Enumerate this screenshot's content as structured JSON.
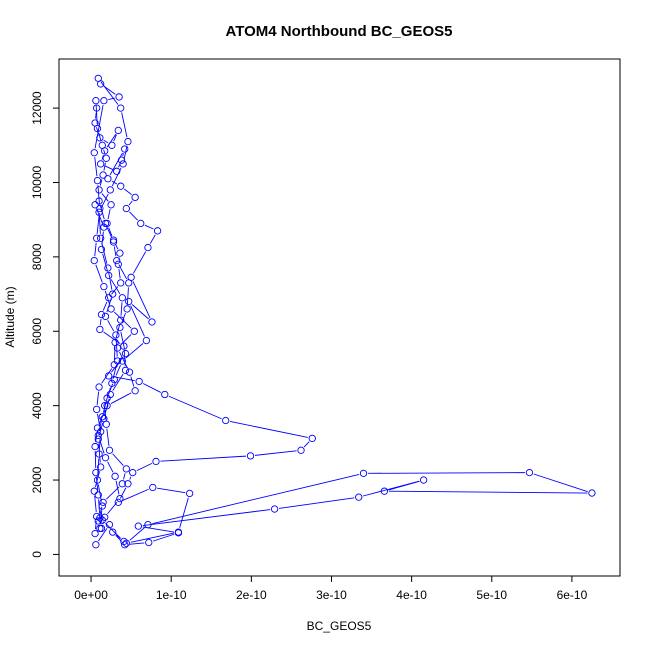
{
  "chart_data": {
    "type": "line",
    "title": "ATOM4 Northbound BC_GEOS5",
    "xlabel": "BC_GEOS5",
    "ylabel": "Altitude (m)",
    "xlim": [
      -4e-11,
      6.6e-10
    ],
    "ylim": [
      -580,
      13320
    ],
    "x_ticks": [
      0,
      1e-10,
      2e-10,
      3e-10,
      4e-10,
      5e-10,
      6e-10
    ],
    "x_tick_labels": [
      "0e+00",
      "1e-10",
      "2e-10",
      "3e-10",
      "4e-10",
      "5e-10",
      "6e-10"
    ],
    "y_ticks": [
      0,
      2000,
      4000,
      6000,
      8000,
      10000,
      12000
    ],
    "y_tick_labels": [
      "0",
      "2000",
      "4000",
      "6000",
      "8000",
      "10000",
      "12000"
    ],
    "grid": false,
    "legend": "none",
    "colors": {
      "series": "#0000ff",
      "axis": "#000000",
      "background": "#ffffff"
    },
    "series": [
      {
        "marker": "open-circle",
        "x": [
          5e-12,
          7e-12,
          4e-12,
          1.2e-11,
          9e-12,
          1.6e-11,
          2.4e-11,
          4.3e-11,
          4.1e-11,
          1.1e-11,
          1.3e-11,
          2.2e-11,
          3.7e-11,
          3.4e-11,
          3.6e-11,
          2.8e-11,
          2e-11,
          2.5e-11,
          1e-11,
          1.5e-11,
          1.9e-11,
          1.4e-11,
          8e-12,
          6e-12,
          7e-12,
          5e-12,
          1.1e-11,
          2.6e-11,
          3.4e-11,
          1.7e-11,
          1.2e-11,
          3.2e-11,
          3.8e-11,
          4.2e-11,
          2.1e-11,
          3.7e-11,
          5.5e-11,
          4.4e-11,
          6.2e-11,
          8.3e-11,
          7.1e-11,
          5e-11,
          7.6e-11,
          4.7e-11,
          6.9e-11,
          3.9e-11,
          2.9e-11,
          2e-11,
          1.4e-11,
          9e-12,
          1.8e-11,
          3e-11,
          3.6e-11,
          1.7e-11,
          1.3e-11,
          1.1e-11,
          9e-12,
          6e-12,
          5e-12,
          8e-12,
          2e-11,
          5.5e-11,
          4.8e-11,
          3.3e-11,
          5.4e-11,
          2.5e-11,
          1.6e-11,
          4e-12,
          7e-12,
          1.1e-11,
          8e-12,
          4e-12,
          1.6e-11,
          3.5e-11,
          1.2e-11,
          9e-12,
          3.7e-11,
          4.6e-11,
          4e-11,
          2.4e-11,
          1e-11,
          1.2e-11,
          2.1e-11,
          2.7e-11,
          1.8e-11,
          3.1e-11,
          3.3e-11,
          2.6e-11,
          1.7e-11,
          1.9e-11,
          2.3e-11,
          4.4e-11,
          3.9e-11,
          1.5e-11,
          9e-12,
          1.1e-11,
          1.4e-11,
          8e-12,
          1e-11,
          1.2e-11,
          7e-12,
          1e-11,
          2.9e-11,
          3e-11,
          3.7e-11,
          3.9e-11,
          2.2e-11,
          1.3e-11,
          1.6e-11,
          5e-12,
          1e-11,
          1.8e-11,
          2.8e-11,
          3.2e-11,
          4.7e-11,
          4.5e-11,
          3.6e-11,
          4.3e-11,
          2.2e-11,
          6e-11,
          9.2e-11,
          1.68e-10,
          2.76e-10,
          2.62e-10,
          1.99e-10,
          8.1e-11,
          5.2e-11,
          4.6e-11,
          3.4e-11,
          7.7e-11,
          1.23e-10,
          1.09e-10,
          4.4e-11,
          7.1e-11,
          3.4e-10,
          5.47e-10,
          6.25e-10,
          3.66e-10,
          4.15e-10,
          3.34e-10,
          2.29e-10,
          5.9e-11,
          1.09e-10,
          7.2e-11,
          4.2e-11,
          2.7e-11,
          4.1e-11,
          1.4e-11,
          2.3e-11,
          6e-12
        ],
        "y": [
          560,
          1020,
          1700,
          2350,
          3100,
          3650,
          4300,
          4950,
          5600,
          6050,
          6450,
          6900,
          7300,
          7800,
          8100,
          8450,
          8900,
          9400,
          9800,
          10200,
          10650,
          11000,
          11450,
          12200,
          12000,
          11600,
          11200,
          11000,
          11400,
          10850,
          10500,
          10300,
          10600,
          10900,
          10100,
          9900,
          9600,
          9300,
          8900,
          8700,
          8250,
          7450,
          6250,
          6800,
          5750,
          5200,
          4700,
          4200,
          3700,
          3200,
          2600,
          2100,
          1500,
          1000,
          700,
          980,
          1600,
          2200,
          2900,
          3400,
          4000,
          4400,
          4900,
          5550,
          6000,
          6600,
          7200,
          7900,
          8500,
          9300,
          10050,
          10800,
          12200,
          12300,
          12650,
          12800,
          12000,
          11100,
          10500,
          9800,
          9200,
          8500,
          7700,
          7000,
          6400,
          5900,
          5200,
          4600,
          4000,
          3500,
          2800,
          2300,
          1900,
          1400,
          900,
          700,
          1300,
          2000,
          2700,
          3300,
          3900,
          4500,
          5100,
          5700,
          6300,
          6900,
          7500,
          8200,
          8800,
          9400,
          9500,
          8900,
          8400,
          7900,
          7300,
          6600,
          6100,
          5400,
          4800,
          4650,
          4300,
          3600,
          3120,
          2800,
          2650,
          2500,
          2200,
          1900,
          1400,
          1800,
          1640,
          600,
          300,
          800,
          2180,
          2200,
          1650,
          1700,
          2000,
          1540,
          1220,
          760,
          580,
          320,
          260,
          600,
          350,
          920,
          800,
          260
        ]
      }
    ]
  }
}
